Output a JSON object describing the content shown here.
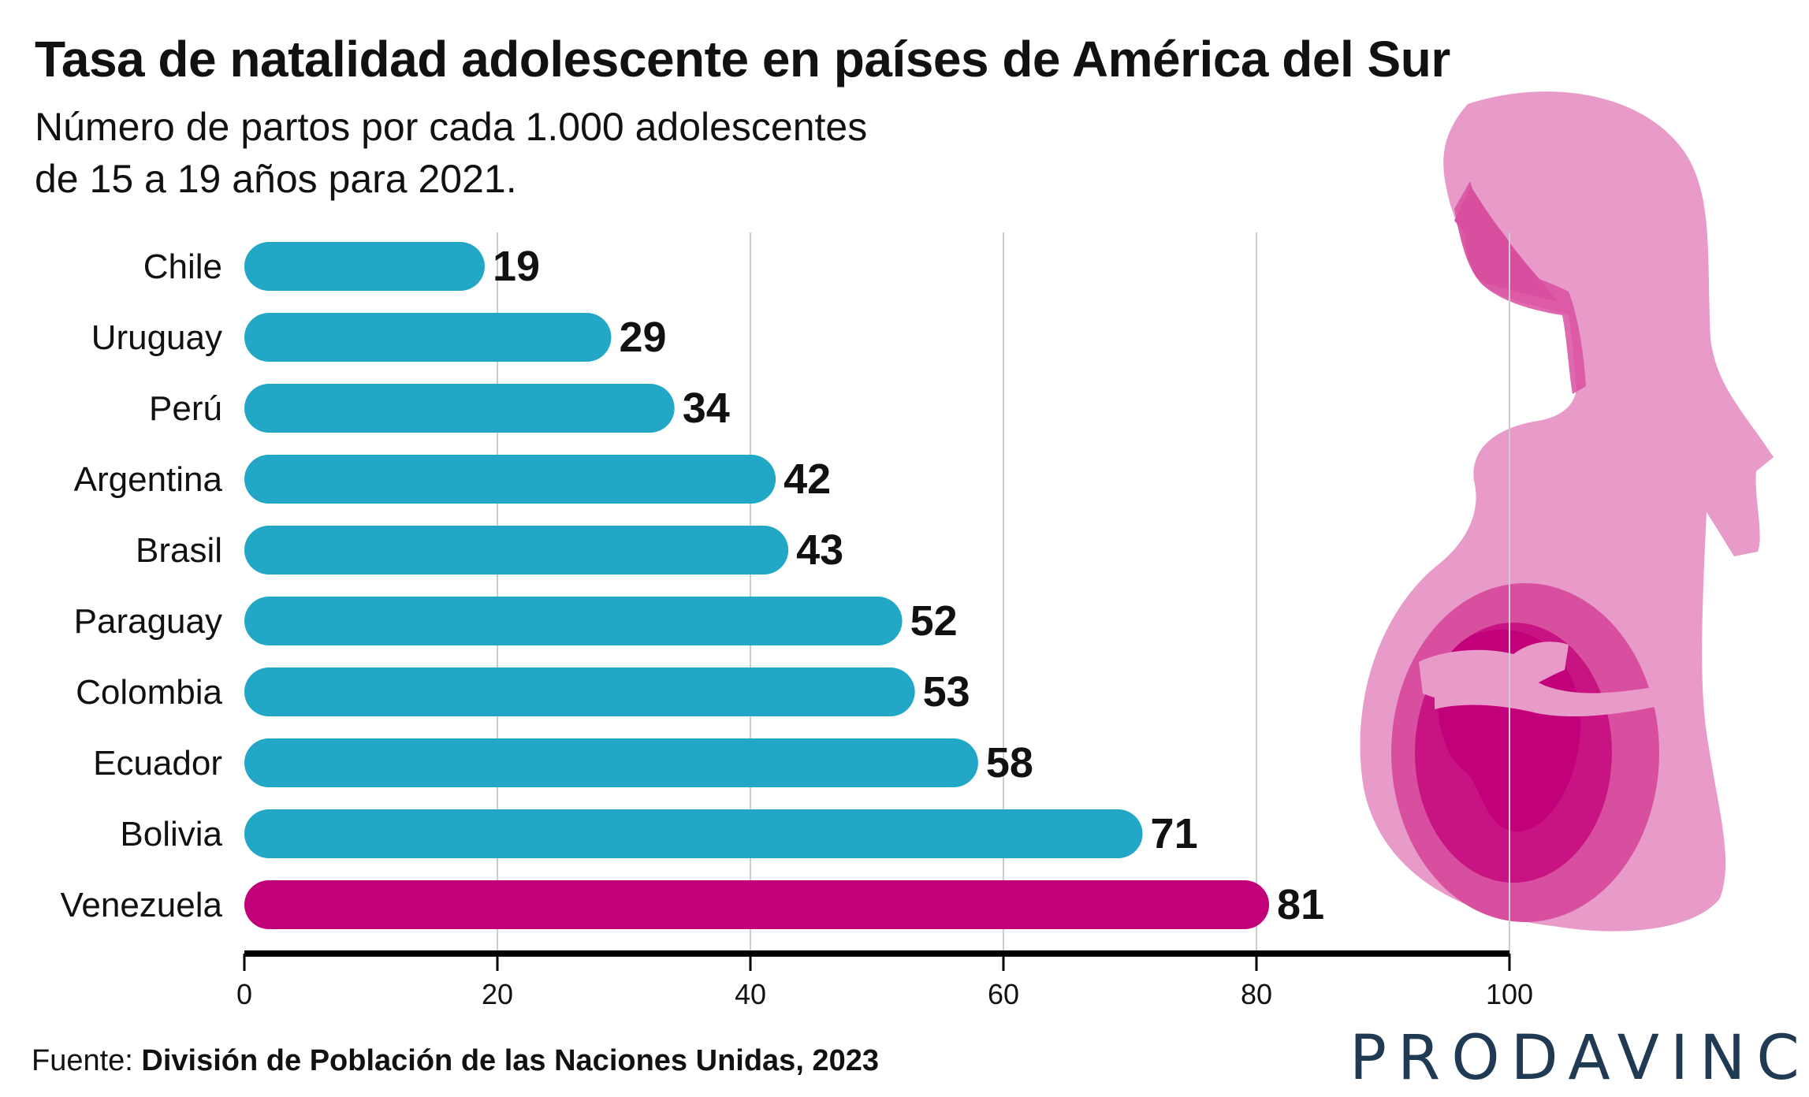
{
  "title": "Tasa de natalidad adolescente en países de América del Sur",
  "subtitle_line1": "Número de partos por cada 1.000 adolescentes",
  "subtitle_line2": "de 15 a 19 años para 2021.",
  "source_label": "Fuente: ",
  "source_text": "División de Población de las Naciones Unidas, 2023",
  "brand": "PRODAVINCI",
  "colors": {
    "bar": "#23a7c6",
    "highlight": "#c2007a",
    "figure_light": "#e89ac9",
    "figure_mid": "#d94fa0",
    "figure_dark": "#c2007a",
    "brand": "#1f3a52"
  },
  "icons": [
    "pregnant-woman-silhouette"
  ],
  "chart_data": {
    "type": "bar",
    "orientation": "horizontal",
    "categories": [
      "Chile",
      "Uruguay",
      "Perú",
      "Argentina",
      "Brasil",
      "Paraguay",
      "Colombia",
      "Ecuador",
      "Bolivia",
      "Venezuela"
    ],
    "values": [
      19,
      29,
      34,
      42,
      43,
      52,
      53,
      58,
      71,
      81
    ],
    "highlight": "Venezuela",
    "xlim": [
      0,
      100
    ],
    "xticks": [
      0,
      20,
      40,
      60,
      80,
      100
    ],
    "grid": true,
    "legend": "none"
  }
}
